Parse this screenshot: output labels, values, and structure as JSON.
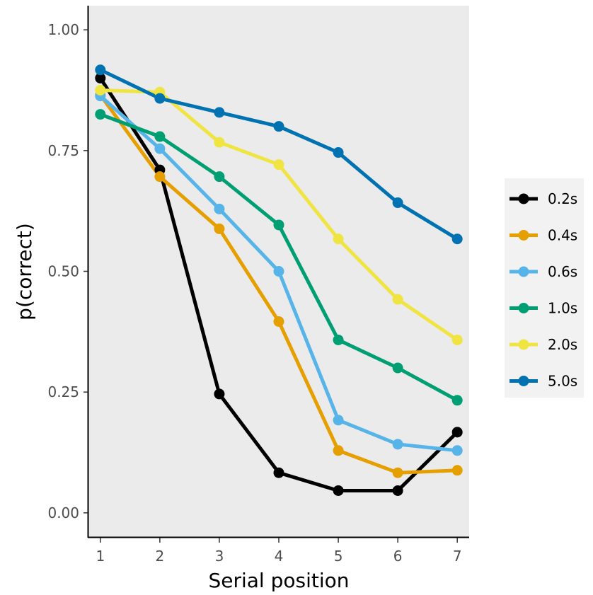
{
  "chart_data": {
    "type": "line",
    "xlabel": "Serial position",
    "ylabel": "p(correct)",
    "x": [
      1,
      2,
      3,
      4,
      5,
      6,
      7
    ],
    "x_ticks": [
      "1",
      "2",
      "3",
      "4",
      "5",
      "6",
      "7"
    ],
    "y_ticks": [
      "0.00",
      "0.25",
      "0.50",
      "0.75",
      "1.00"
    ],
    "xlim": [
      0.8,
      7.2
    ],
    "ylim": [
      -0.05,
      1.05
    ],
    "grid": false,
    "panel_background": "#ebebeb",
    "legend_position": "right",
    "series": [
      {
        "name": "0.2s",
        "color": "#000000",
        "values": [
          0.9,
          0.71,
          0.246,
          0.083,
          0.046,
          0.046,
          0.167
        ]
      },
      {
        "name": "0.4s",
        "color": "#e69f00",
        "values": [
          0.865,
          0.696,
          0.588,
          0.396,
          0.129,
          0.083,
          0.088
        ]
      },
      {
        "name": "0.6s",
        "color": "#56b4e9",
        "values": [
          0.863,
          0.754,
          0.629,
          0.5,
          0.192,
          0.142,
          0.129
        ]
      },
      {
        "name": "1.0s",
        "color": "#009e73",
        "values": [
          0.825,
          0.779,
          0.696,
          0.596,
          0.358,
          0.3,
          0.233
        ]
      },
      {
        "name": "2.0s",
        "color": "#f0e442",
        "values": [
          0.875,
          0.871,
          0.767,
          0.721,
          0.567,
          0.442,
          0.358
        ]
      },
      {
        "name": "5.0s",
        "color": "#0072b2",
        "values": [
          0.917,
          0.858,
          0.829,
          0.8,
          0.746,
          0.642,
          0.567
        ]
      }
    ]
  }
}
